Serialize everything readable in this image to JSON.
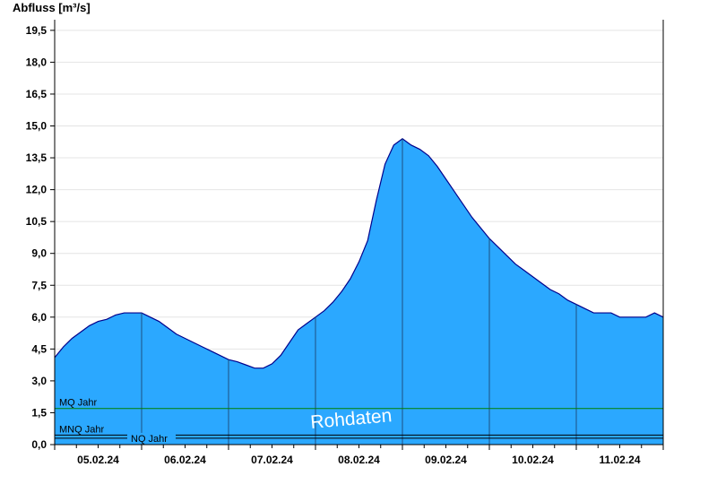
{
  "chart_data": {
    "type": "area",
    "title": "",
    "ylabel": "Abfluss [m³/s]",
    "xlabel": "",
    "ylim": [
      0,
      20
    ],
    "xlim": [
      0,
      7
    ],
    "yticks": [
      0,
      1.5,
      3,
      4.5,
      6,
      7.5,
      9,
      10.5,
      12,
      13.5,
      15,
      16.5,
      18,
      19.5
    ],
    "ytick_labels": [
      "0,0",
      "1,5",
      "3,0",
      "4,5",
      "6,0",
      "7,5",
      "9,0",
      "10,5",
      "12,0",
      "13,5",
      "15,0",
      "16,5",
      "18,0",
      "19,5"
    ],
    "xtick_labels": [
      "05.02.24",
      "06.02.24",
      "07.02.24",
      "08.02.24",
      "09.02.24",
      "10.02.24",
      "11.02.24"
    ],
    "grid": true,
    "area_color": "#2ba8ff",
    "line_color": "#00008b",
    "x": [
      0,
      0.1,
      0.2,
      0.3,
      0.4,
      0.5,
      0.6,
      0.7,
      0.8,
      0.9,
      1.0,
      1.1,
      1.2,
      1.3,
      1.4,
      1.5,
      1.6,
      1.7,
      1.8,
      1.9,
      2.0,
      2.1,
      2.2,
      2.3,
      2.4,
      2.5,
      2.6,
      2.7,
      2.8,
      2.9,
      3.0,
      3.1,
      3.2,
      3.3,
      3.4,
      3.5,
      3.6,
      3.7,
      3.8,
      3.9,
      4.0,
      4.1,
      4.2,
      4.3,
      4.4,
      4.5,
      4.6,
      4.7,
      4.8,
      4.9,
      5.0,
      5.1,
      5.2,
      5.3,
      5.4,
      5.5,
      5.6,
      5.7,
      5.8,
      5.9,
      6.0,
      6.1,
      6.2,
      6.3,
      6.4,
      6.5,
      6.6,
      6.7,
      6.8,
      6.9,
      7.0
    ],
    "values": [
      4.1,
      4.6,
      5.0,
      5.3,
      5.6,
      5.8,
      5.9,
      6.1,
      6.2,
      6.2,
      6.2,
      6.0,
      5.8,
      5.5,
      5.2,
      5.0,
      4.8,
      4.6,
      4.4,
      4.2,
      4.0,
      3.9,
      3.75,
      3.6,
      3.6,
      3.8,
      4.2,
      4.8,
      5.4,
      5.7,
      6.0,
      6.3,
      6.7,
      7.2,
      7.8,
      8.6,
      9.6,
      11.5,
      13.2,
      14.1,
      14.4,
      14.1,
      13.9,
      13.6,
      13.1,
      12.5,
      11.9,
      11.3,
      10.7,
      10.2,
      9.7,
      9.3,
      8.9,
      8.5,
      8.2,
      7.9,
      7.6,
      7.3,
      7.1,
      6.8,
      6.6,
      6.4,
      6.2,
      6.2,
      6.2,
      6.0,
      6.0,
      6.0,
      6.0,
      6.2,
      6.0
    ],
    "reference_lines": [
      {
        "name": "MQ Jahr",
        "value": 1.7,
        "color": "#008000"
      },
      {
        "name": "MNQ Jahr",
        "value": 0.45,
        "color": "#000000"
      },
      {
        "name": "NQ Jahr",
        "value": 0.3,
        "color": "#000000"
      }
    ],
    "watermark": "Rohdaten"
  }
}
